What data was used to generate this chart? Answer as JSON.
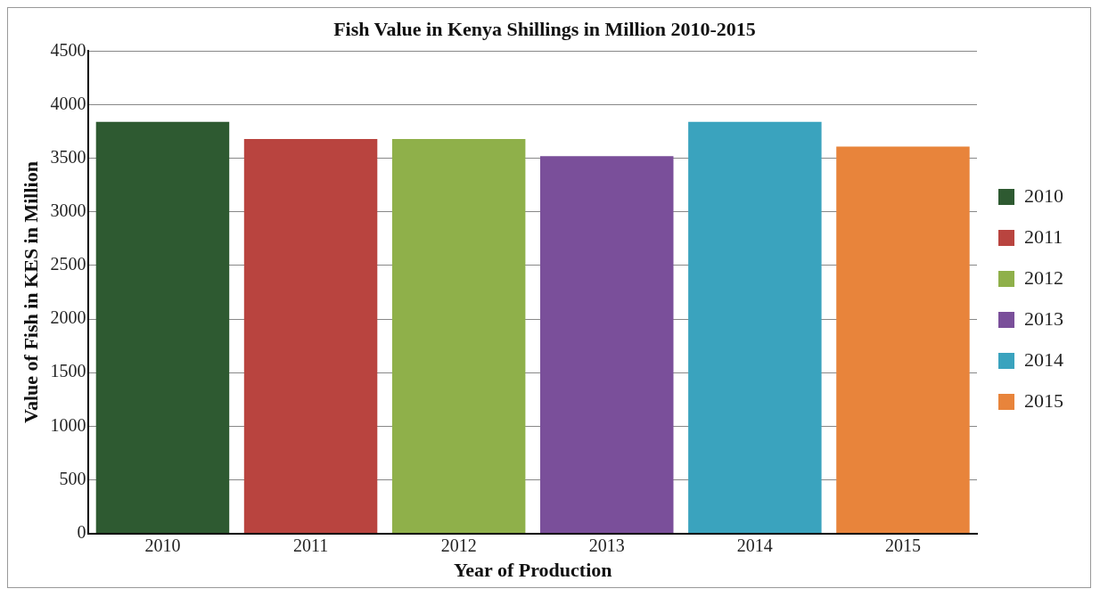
{
  "chart_data": {
    "type": "bar",
    "title": "Fish Value in Kenya Shillings in Million 2010-2015",
    "xlabel": "Year of Production",
    "ylabel": "Value of Fish in KES in Million",
    "categories": [
      "2010",
      "2011",
      "2012",
      "2013",
      "2014",
      "2015"
    ],
    "series": [
      {
        "name": "2010",
        "color": "#2e5a31",
        "values": [
          3840,
          null,
          null,
          null,
          null,
          null
        ]
      },
      {
        "name": "2011",
        "color": "#b9443f",
        "values": [
          null,
          3680,
          null,
          null,
          null,
          null
        ]
      },
      {
        "name": "2012",
        "color": "#8fb04a",
        "values": [
          null,
          null,
          3680,
          null,
          null,
          null
        ]
      },
      {
        "name": "2013",
        "color": "#7a4f9a",
        "values": [
          null,
          null,
          null,
          3520,
          null,
          null
        ]
      },
      {
        "name": "2014",
        "color": "#3aa3be",
        "values": [
          null,
          null,
          null,
          null,
          3840,
          null
        ]
      },
      {
        "name": "2015",
        "color": "#e8843b",
        "values": [
          null,
          null,
          null,
          null,
          null,
          3610
        ]
      }
    ],
    "ylim": [
      0,
      4500
    ],
    "yticks": [
      0,
      500,
      1000,
      1500,
      2000,
      2500,
      3000,
      3500,
      4000,
      4500
    ],
    "grid": "y",
    "legend": "right"
  }
}
